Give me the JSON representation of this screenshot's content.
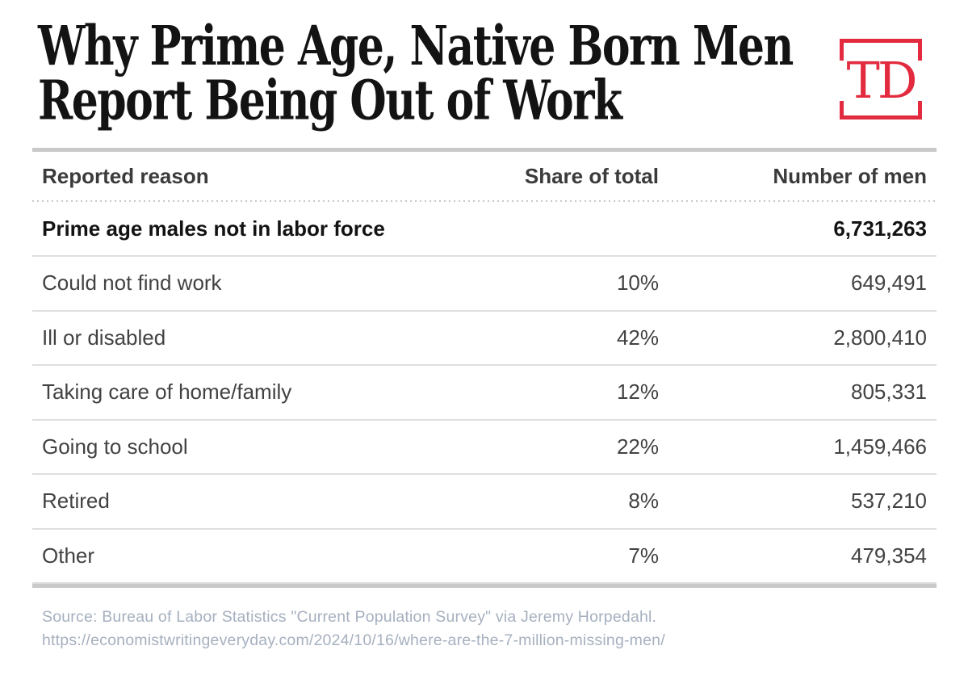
{
  "title": {
    "line1": "Why Prime Age, Native Born Men",
    "line2": "Report Being Out of Work"
  },
  "logo": {
    "text": "TD",
    "color": "#e22b3f"
  },
  "table": {
    "headers": [
      "Reported reason",
      "Share of total",
      "Number of men"
    ],
    "total_row": {
      "reason": "Prime age males not in labor force",
      "share": "",
      "number": "6,731,263"
    },
    "rows": [
      {
        "reason": "Could not find work",
        "share": "10%",
        "number": "649,491"
      },
      {
        "reason": "Ill or disabled",
        "share": "42%",
        "number": "2,800,410"
      },
      {
        "reason": "Taking care of home/family",
        "share": "12%",
        "number": "805,331"
      },
      {
        "reason": "Going to school",
        "share": "22%",
        "number": "1,459,466"
      },
      {
        "reason": "Retired",
        "share": "8%",
        "number": "537,210"
      },
      {
        "reason": "Other",
        "share": "7%",
        "number": "479,354"
      }
    ]
  },
  "source": {
    "line1": "Source: Bureau of Labor Statistics \"Current Population Survey\" via Jeremy Horpedahl.",
    "line2": "https://economistwritingeveryday.com/2024/10/16/where-are-the-7-million-missing-men/"
  },
  "colors": {
    "accent_red": "#e22b3f",
    "title_text": "#131313",
    "body_text": "#424242",
    "header_text": "#3b3b3b",
    "rule_thick": "#c9c9c9",
    "rule_thin": "#dfdfdf",
    "source_text": "#a6b0bf",
    "background": "#ffffff"
  },
  "chart_data": {
    "type": "table",
    "title": "Why Prime Age, Native Born Men Report Being Out of Work",
    "columns": [
      "Reported reason",
      "Share of total",
      "Number of men"
    ],
    "total": {
      "label": "Prime age males not in labor force",
      "number_of_men": 6731263
    },
    "rows": [
      {
        "label": "Could not find work",
        "share_pct": 10,
        "number_of_men": 649491
      },
      {
        "label": "Ill or disabled",
        "share_pct": 42,
        "number_of_men": 2800410
      },
      {
        "label": "Taking care of home/family",
        "share_pct": 12,
        "number_of_men": 805331
      },
      {
        "label": "Going to school",
        "share_pct": 22,
        "number_of_men": 1459466
      },
      {
        "label": "Retired",
        "share_pct": 8,
        "number_of_men": 537210
      },
      {
        "label": "Other",
        "share_pct": 7,
        "number_of_men": 479354
      }
    ],
    "source": "Bureau of Labor Statistics \"Current Population Survey\" via Jeremy Horpedahl",
    "source_url": "https://economistwritingeveryday.com/2024/10/16/where-are-the-7-million-missing-men/"
  }
}
